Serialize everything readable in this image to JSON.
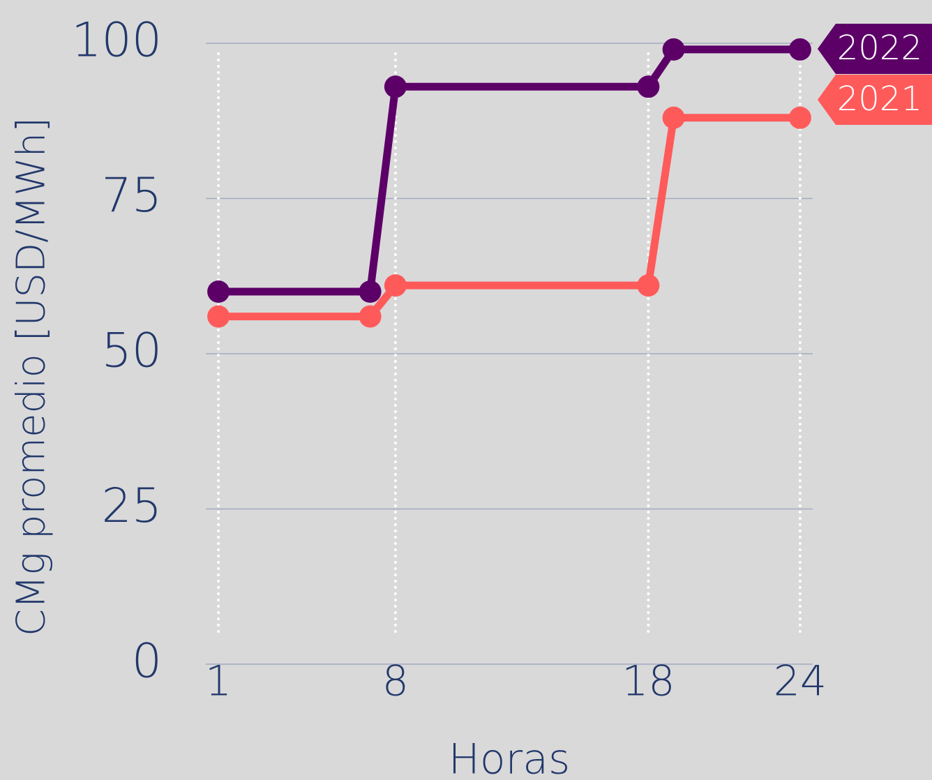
{
  "chart_data": {
    "type": "line",
    "x_label": "Horas",
    "y_label": "CMg promedio [USD/MWh]",
    "series": [
      {
        "name": "2022",
        "color": "#5c0068",
        "x": [
          1,
          7,
          8,
          18,
          19,
          24
        ],
        "values": [
          60,
          60,
          93,
          93,
          99,
          99
        ]
      },
      {
        "name": "2021",
        "color": "#ff5a5a",
        "x": [
          1,
          7,
          8,
          18,
          19,
          24
        ],
        "values": [
          56,
          56,
          61,
          61,
          88,
          88
        ]
      }
    ],
    "xlim": [
      0.5,
      24.5
    ],
    "xticks": [
      1,
      8,
      18,
      24
    ],
    "ylim": [
      0,
      100
    ],
    "yticks": [
      0,
      25,
      50,
      75,
      100
    ],
    "grid": true
  }
}
